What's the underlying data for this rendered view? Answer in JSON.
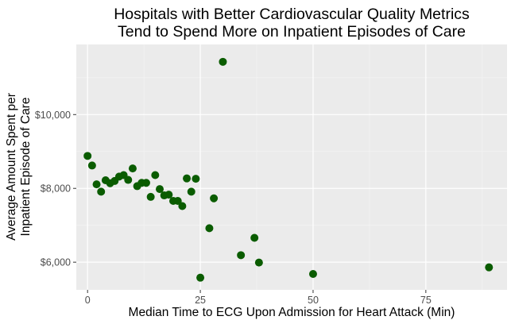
{
  "chart_data": {
    "type": "scatter",
    "title_lines": [
      "Hospitals with Better Cardiovascular Quality Metrics",
      "Tend to Spend More on Inpatient Episodes of Care"
    ],
    "xlabel": "Median Time to ECG Upon Admission for Heart Attack (Min)",
    "ylabel_lines": [
      "Average Amount Spent per",
      "Inpatient Episode of Care"
    ],
    "xlim": [
      -2.5,
      93
    ],
    "ylim": [
      5250,
      11900
    ],
    "x_ticks": [
      0,
      25,
      50,
      75
    ],
    "x_tick_labels": [
      "0",
      "25",
      "50",
      "75"
    ],
    "y_ticks": [
      6000,
      8000,
      10000
    ],
    "y_tick_labels": [
      "$6,000",
      "$8,000",
      "$10,000"
    ],
    "grid": true,
    "point_color": "#0a5c00",
    "panel_color": "#ebebeb",
    "points": [
      {
        "x": 0,
        "y": 8880
      },
      {
        "x": 1,
        "y": 8620
      },
      {
        "x": 2,
        "y": 8110
      },
      {
        "x": 3,
        "y": 7910
      },
      {
        "x": 4,
        "y": 8220
      },
      {
        "x": 5,
        "y": 8140
      },
      {
        "x": 6,
        "y": 8200
      },
      {
        "x": 7,
        "y": 8320
      },
      {
        "x": 8,
        "y": 8360
      },
      {
        "x": 9,
        "y": 8230
      },
      {
        "x": 10,
        "y": 8540
      },
      {
        "x": 11,
        "y": 8060
      },
      {
        "x": 12,
        "y": 8150
      },
      {
        "x": 13,
        "y": 8150
      },
      {
        "x": 14,
        "y": 7770
      },
      {
        "x": 15,
        "y": 8360
      },
      {
        "x": 16,
        "y": 7980
      },
      {
        "x": 17,
        "y": 7810
      },
      {
        "x": 18,
        "y": 7830
      },
      {
        "x": 19,
        "y": 7660
      },
      {
        "x": 20,
        "y": 7660
      },
      {
        "x": 21,
        "y": 7520
      },
      {
        "x": 22,
        "y": 8270
      },
      {
        "x": 23,
        "y": 7910
      },
      {
        "x": 24,
        "y": 8260
      },
      {
        "x": 25,
        "y": 5580
      },
      {
        "x": 27,
        "y": 6920
      },
      {
        "x": 28,
        "y": 7730
      },
      {
        "x": 30,
        "y": 11430
      },
      {
        "x": 34,
        "y": 6190
      },
      {
        "x": 37,
        "y": 6660
      },
      {
        "x": 38,
        "y": 5990
      },
      {
        "x": 50,
        "y": 5680
      },
      {
        "x": 89,
        "y": 5860
      }
    ]
  }
}
